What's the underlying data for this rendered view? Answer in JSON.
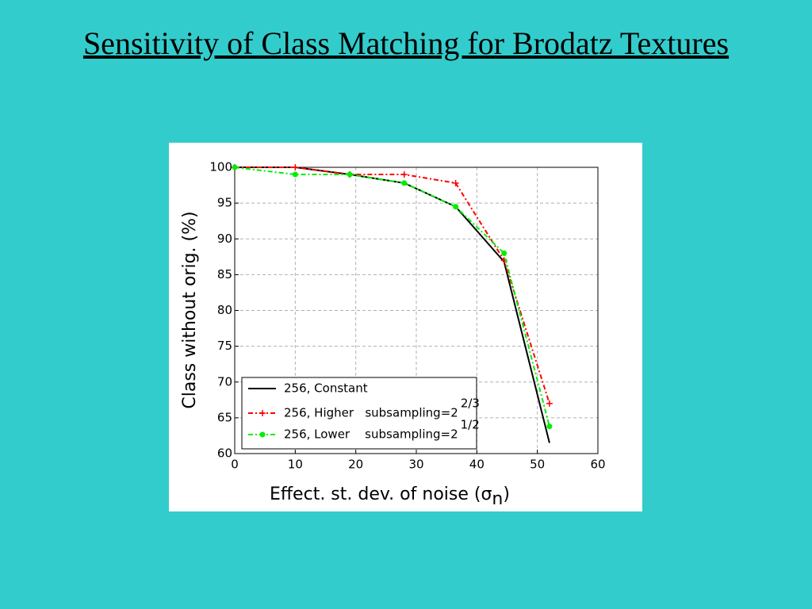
{
  "title": "Sensitivity of Class Matching for Brodatz Textures",
  "chart_data": {
    "type": "line",
    "ylabel": "Class without orig. (%)",
    "xlabel": "Effect. st. dev. of noise (σ",
    "xlabel_subscript": "n",
    "xlabel_end": ")",
    "x": [
      0,
      10,
      19,
      28,
      36.5,
      44.5,
      52
    ],
    "series": [
      {
        "name": "256, Constant",
        "color": "#000000",
        "style": "solid",
        "marker": "none",
        "values": [
          100,
          100,
          99,
          97.8,
          94.5,
          86.8,
          61.5
        ]
      },
      {
        "name": "256, Higher   subsampling=2",
        "exponent": "2/3",
        "color": "#ff0000",
        "style": "dashdot",
        "marker": "plus",
        "values": [
          100,
          100,
          99,
          99,
          97.8,
          87,
          67
        ]
      },
      {
        "name": "256, Lower    subsampling=2",
        "exponent": "1/2",
        "color": "#00ee00",
        "style": "dashdot",
        "marker": "dot",
        "values": [
          100,
          99,
          99,
          97.8,
          94.5,
          88,
          63.8
        ]
      }
    ],
    "xlim": [
      0,
      60
    ],
    "xticks": [
      0,
      10,
      20,
      30,
      40,
      50,
      60
    ],
    "ylim": [
      60,
      100
    ],
    "yticks": [
      60,
      65,
      70,
      75,
      80,
      85,
      90,
      95,
      100
    ],
    "grid": true,
    "legend": "lower-left"
  }
}
